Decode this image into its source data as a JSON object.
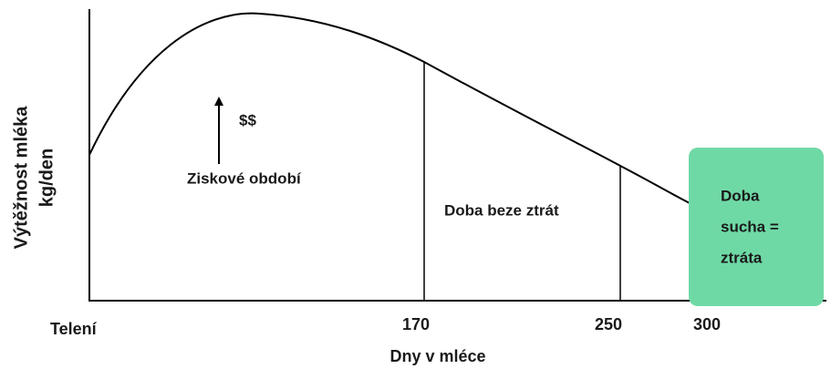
{
  "diagram": {
    "y_axis_label": [
      "Výtěžnost mléka",
      "kg/den"
    ],
    "x_axis_label": "Dny v mléce",
    "x_labels": [
      "Telení",
      "170",
      "250",
      "300"
    ],
    "regions": {
      "profit": {
        "arrow_label": "$$",
        "label": "Ziskové období"
      },
      "breakeven": {
        "label": "Doba beze ztrát"
      },
      "dry": {
        "lines": [
          "Doba",
          "sucha =",
          "ztráta"
        ]
      }
    }
  }
}
